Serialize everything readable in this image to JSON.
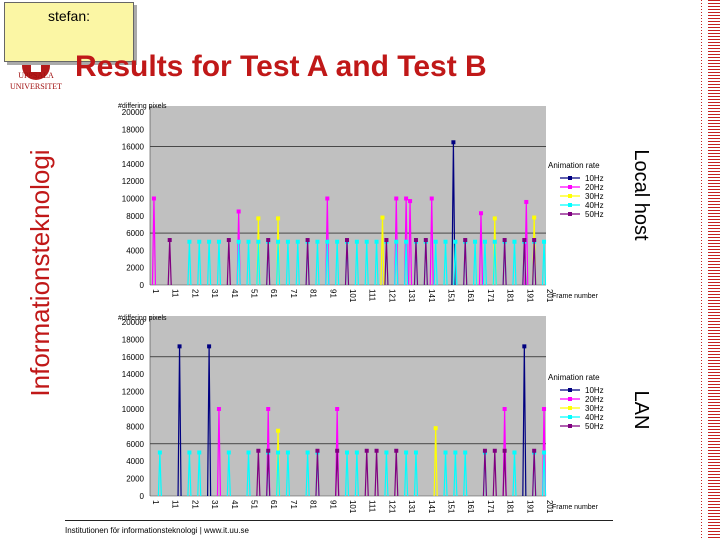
{
  "note": {
    "text": "stefan:"
  },
  "logo": {
    "line1": "UPPSALA",
    "line2": "UNIVERSITET"
  },
  "sidebar": {
    "label": "Informationsteknologi"
  },
  "title": "Results for Test A and Test B",
  "footer": {
    "text": "Institutionen för informationsteknologi | www.it.uu.se"
  },
  "colors": {
    "accent": "#c01818",
    "plot_bg": "#c0c0c0",
    "s10": "#000080",
    "s20": "#ff00ff",
    "s30": "#ffff00",
    "s40": "#00ffff",
    "s50": "#800080"
  },
  "chart_data": [
    {
      "type": "line",
      "side_label": "Local host",
      "ylabel": "#differing pixels",
      "xlabel": "Frame number",
      "legend_title": "Animation rate",
      "ylim": [
        0,
        20000
      ],
      "yticks": [
        0,
        2000,
        4000,
        6000,
        8000,
        10000,
        12000,
        14000,
        16000,
        18000,
        20000
      ],
      "xticks": [
        "1",
        "11",
        "21",
        "31",
        "41",
        "51",
        "61",
        "71",
        "81",
        "91",
        "101",
        "111",
        "121",
        "131",
        "141",
        "151",
        "161",
        "171",
        "181",
        "191",
        "201"
      ],
      "series": [
        {
          "name": "10Hz",
          "spikes": [
            [
              155,
              16500
            ]
          ]
        },
        {
          "name": "20Hz",
          "spikes": [
            [
              3,
              10000
            ],
            [
              46,
              8500
            ],
            [
              91,
              10000
            ],
            [
              126,
              10000
            ],
            [
              131,
              10000
            ],
            [
              133,
              9700
            ],
            [
              144,
              10000
            ],
            [
              169,
              8300
            ],
            [
              192,
              9600
            ]
          ]
        },
        {
          "name": "30Hz",
          "spikes": [
            [
              56,
              7700
            ],
            [
              66,
              7700
            ],
            [
              119,
              7800
            ],
            [
              176,
              7700
            ],
            [
              196,
              7800
            ]
          ]
        },
        {
          "name": "40Hz",
          "spikes": [
            [
              21,
              5000
            ],
            [
              26,
              5000
            ],
            [
              31,
              5000
            ],
            [
              36,
              5000
            ],
            [
              46,
              5000
            ],
            [
              51,
              5000
            ],
            [
              56,
              5000
            ],
            [
              61,
              5000
            ],
            [
              66,
              5000
            ],
            [
              71,
              5000
            ],
            [
              76,
              5000
            ],
            [
              81,
              5000
            ],
            [
              86,
              5000
            ],
            [
              91,
              5000
            ],
            [
              96,
              5000
            ],
            [
              101,
              5000
            ],
            [
              106,
              5000
            ],
            [
              111,
              5000
            ],
            [
              116,
              5000
            ],
            [
              121,
              5000
            ],
            [
              126,
              5000
            ],
            [
              131,
              5000
            ],
            [
              136,
              5000
            ],
            [
              141,
              5000
            ],
            [
              146,
              5000
            ],
            [
              151,
              5000
            ],
            [
              156,
              5000
            ],
            [
              161,
              5000
            ],
            [
              166,
              5000
            ],
            [
              171,
              5000
            ],
            [
              176,
              5000
            ],
            [
              181,
              5000
            ],
            [
              186,
              5000
            ],
            [
              191,
              5000
            ],
            [
              196,
              5000
            ],
            [
              201,
              5000
            ]
          ]
        },
        {
          "name": "50Hz",
          "spikes": [
            [
              11,
              5200
            ],
            [
              41,
              5200
            ],
            [
              61,
              5200
            ],
            [
              81,
              5200
            ],
            [
              101,
              5200
            ],
            [
              121,
              5200
            ],
            [
              136,
              5200
            ],
            [
              141,
              5200
            ],
            [
              161,
              5200
            ],
            [
              181,
              5200
            ],
            [
              191,
              5200
            ],
            [
              196,
              5200
            ]
          ]
        }
      ]
    },
    {
      "type": "line",
      "side_label": "LAN",
      "ylabel": "#differing pixels",
      "xlabel": "Frame number",
      "legend_title": "Animation rate",
      "ylim": [
        0,
        20000
      ],
      "yticks": [
        0,
        2000,
        4000,
        6000,
        8000,
        10000,
        12000,
        14000,
        16000,
        18000,
        20000
      ],
      "xticks": [
        "1",
        "11",
        "21",
        "31",
        "41",
        "51",
        "61",
        "71",
        "81",
        "91",
        "101",
        "111",
        "121",
        "131",
        "141",
        "151",
        "161",
        "171",
        "181",
        "191",
        "201"
      ],
      "series": [
        {
          "name": "10Hz",
          "spikes": [
            [
              16,
              17200
            ],
            [
              31,
              17200
            ],
            [
              191,
              17200
            ]
          ]
        },
        {
          "name": "20Hz",
          "spikes": [
            [
              36,
              10000
            ],
            [
              61,
              10000
            ],
            [
              96,
              10000
            ],
            [
              181,
              10000
            ],
            [
              201,
              10000
            ]
          ]
        },
        {
          "name": "30Hz",
          "spikes": [
            [
              66,
              7500
            ],
            [
              146,
              7800
            ]
          ]
        },
        {
          "name": "40Hz",
          "spikes": [
            [
              6,
              5000
            ],
            [
              21,
              5000
            ],
            [
              26,
              5000
            ],
            [
              41,
              5000
            ],
            [
              51,
              5000
            ],
            [
              61,
              5000
            ],
            [
              66,
              5000
            ],
            [
              71,
              5000
            ],
            [
              81,
              5000
            ],
            [
              86,
              5000
            ],
            [
              101,
              5000
            ],
            [
              106,
              5000
            ],
            [
              121,
              5000
            ],
            [
              131,
              5000
            ],
            [
              136,
              5000
            ],
            [
              151,
              5000
            ],
            [
              156,
              5000
            ],
            [
              161,
              5000
            ],
            [
              171,
              5000
            ],
            [
              186,
              5000
            ],
            [
              196,
              5000
            ],
            [
              201,
              5000
            ]
          ]
        },
        {
          "name": "50Hz",
          "spikes": [
            [
              56,
              5200
            ],
            [
              61,
              5200
            ],
            [
              86,
              5200
            ],
            [
              96,
              5200
            ],
            [
              111,
              5200
            ],
            [
              116,
              5200
            ],
            [
              126,
              5200
            ],
            [
              171,
              5200
            ],
            [
              176,
              5200
            ],
            [
              181,
              5200
            ],
            [
              196,
              5200
            ]
          ]
        }
      ]
    }
  ]
}
